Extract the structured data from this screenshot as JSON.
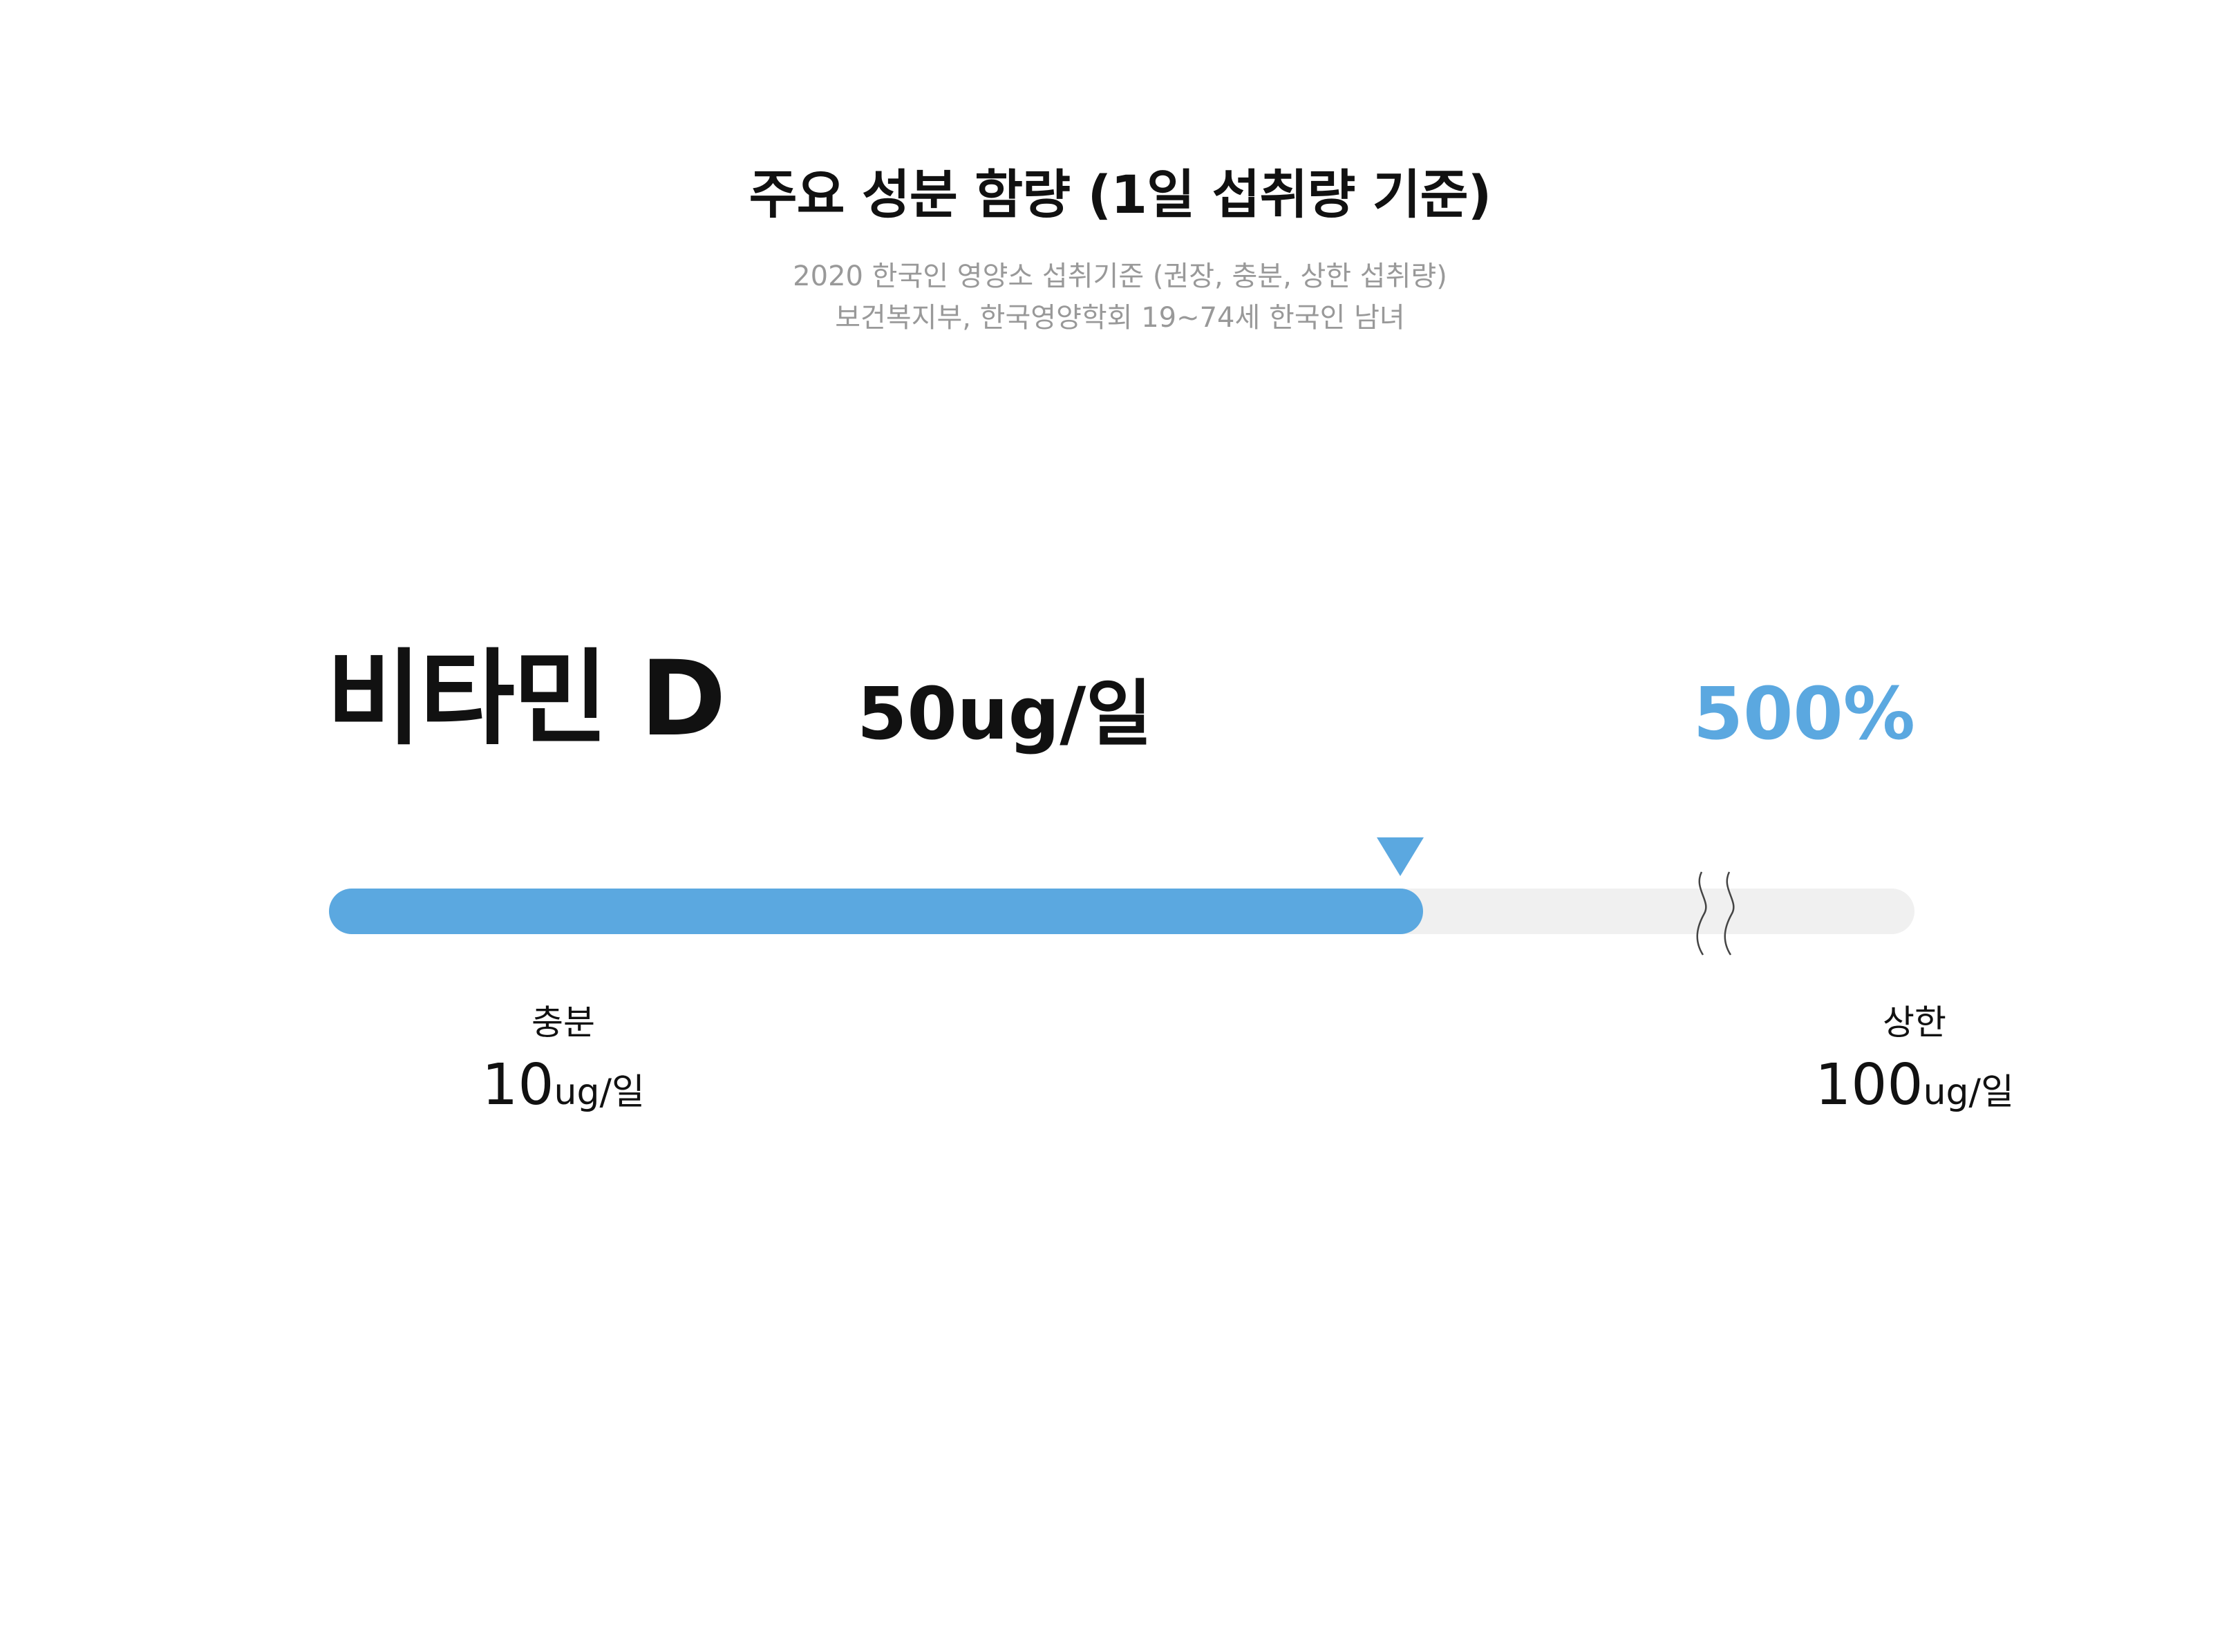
{
  "header": {
    "title": "주요 성분 함량 (1일 섭취량 기준)",
    "subtitle_line1": "2020 한국인 영양소 섭취기준 (권장, 충분, 상한 섭취량)",
    "subtitle_line2": "보건복지부, 한국영양학회  19~74세 한국인 남녀"
  },
  "nutrient": {
    "name": "비타민 D",
    "amount": "50ug/일",
    "percent_label": "500%",
    "fill_fraction": 0.69
  },
  "scale": {
    "left_caption": "충분",
    "left_value": "10",
    "left_unit": "ug/일",
    "right_caption": "상한",
    "right_value": "100",
    "right_unit": "ug/일"
  },
  "colors": {
    "accent": "#5BA8E0",
    "track": "#F0F0F0",
    "muted_text": "#999999"
  },
  "icons": {
    "marker": "triangle-down-icon",
    "break": "axis-break-icon"
  }
}
